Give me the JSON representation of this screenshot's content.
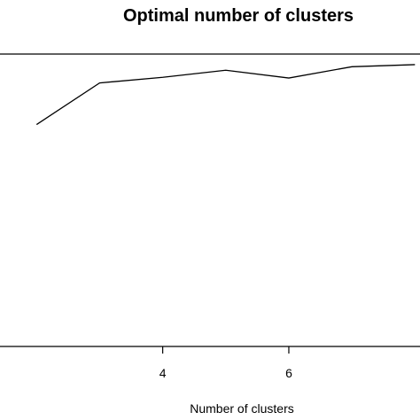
{
  "chart_data": {
    "type": "line",
    "title": "Optimal number of clusters",
    "xlabel": "Number of clusters",
    "ylabel": "",
    "x": [
      2,
      3,
      4,
      5,
      6,
      7,
      8
    ],
    "series": [
      {
        "values": [
          0.915,
          0.974,
          0.982,
          0.992,
          0.981,
          0.997,
          1.0
        ]
      }
    ],
    "xticks": [
      4,
      6
    ],
    "xtick_labels": [
      "4",
      "6"
    ],
    "xlim": [
      1.42,
      8.08
    ],
    "ylim": [
      0.6,
      1.015
    ],
    "grid": false,
    "legend": "none",
    "line_color": "#000000"
  }
}
